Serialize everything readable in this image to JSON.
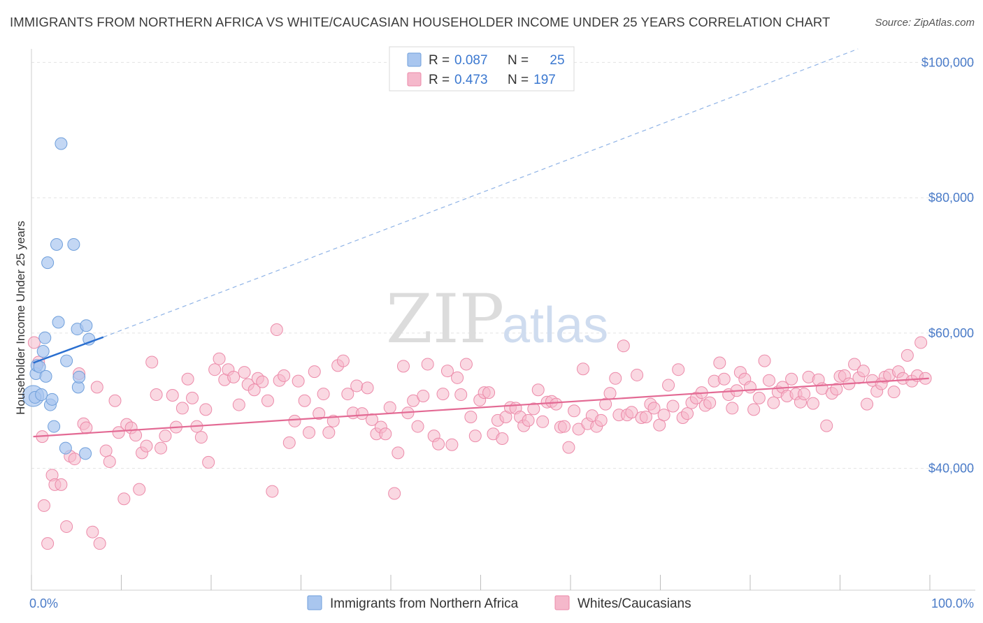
{
  "header": {
    "title": "IMMIGRANTS FROM NORTHERN AFRICA VS WHITE/CAUCASIAN HOUSEHOLDER INCOME UNDER 25 YEARS CORRELATION CHART",
    "source": "Source: ZipAtlas.com"
  },
  "watermark": {
    "zip": "ZIP",
    "atlas": "atlas"
  },
  "colors": {
    "blue_point": "#a9c6ef",
    "blue_stroke": "#6f9fdb",
    "blue_line": "#2a6fd0",
    "pink_point": "#f5b8cb",
    "pink_stroke": "#ec8aa9",
    "pink_line": "#e36a94",
    "axis_label": "#4a7bc8"
  },
  "legend": {
    "rows": [
      {
        "r_label": "R = ",
        "r_value": "0.087",
        "n_label": "N = ",
        "n_value": "25"
      },
      {
        "r_label": "R = ",
        "r_value": "0.473",
        "n_label": "N = ",
        "n_value": "197"
      }
    ]
  },
  "chart_data": {
    "type": "scatter",
    "title": "IMMIGRANTS FROM NORTHERN AFRICA VS WHITE/CAUCASIAN HOUSEHOLDER INCOME UNDER 25 YEARS CORRELATION CHART",
    "xlabel": "",
    "ylabel": "Householder Income Under 25 years",
    "xlim": [
      0,
      100
    ],
    "ylim": [
      22000,
      102000
    ],
    "x_tick_labels": [
      "0.0%",
      "100.0%"
    ],
    "y_ticks": [
      40000,
      60000,
      80000,
      100000
    ],
    "y_tick_labels": [
      "$40,000",
      "$60,000",
      "$80,000",
      "$100,000"
    ],
    "grid": true,
    "legend_position": "top-center",
    "series": [
      {
        "name": "Immigrants from Northern Africa",
        "color": "#a9c6ef",
        "points": [
          [
            0.2,
            50700
          ],
          [
            0.4,
            50500
          ],
          [
            0.5,
            54000
          ],
          [
            0.6,
            55200
          ],
          [
            0.9,
            55000
          ],
          [
            1.1,
            50900
          ],
          [
            1.3,
            57300
          ],
          [
            1.5,
            59300
          ],
          [
            1.6,
            53600
          ],
          [
            1.8,
            70400
          ],
          [
            2.1,
            49400
          ],
          [
            2.3,
            50200
          ],
          [
            2.5,
            46200
          ],
          [
            2.8,
            73100
          ],
          [
            3.0,
            61600
          ],
          [
            3.3,
            88000
          ],
          [
            3.8,
            43000
          ],
          [
            3.9,
            55900
          ],
          [
            4.7,
            73100
          ],
          [
            5.1,
            60600
          ],
          [
            5.2,
            52000
          ],
          [
            5.3,
            53500
          ],
          [
            6.1,
            61100
          ],
          [
            6.0,
            42200
          ],
          [
            6.4,
            59100
          ]
        ],
        "trend": {
          "x": [
            0.2,
            8.0
          ],
          "y": [
            55600,
            59400
          ]
        },
        "trend_extended": {
          "x": [
            8.0,
            92.0
          ],
          "y": [
            59400,
            102000
          ]
        }
      },
      {
        "name": "Whites/Caucasians",
        "color": "#f5b8cb",
        "points": [
          [
            0.3,
            58600
          ],
          [
            1.2,
            44700
          ],
          [
            1.4,
            34500
          ],
          [
            1.8,
            28900
          ],
          [
            2.3,
            39000
          ],
          [
            2.6,
            37600
          ],
          [
            3.3,
            37600
          ],
          [
            3.9,
            31400
          ],
          [
            4.3,
            41800
          ],
          [
            4.8,
            41400
          ],
          [
            5.3,
            54000
          ],
          [
            5.8,
            46600
          ],
          [
            6.1,
            46000
          ],
          [
            6.8,
            30600
          ],
          [
            7.3,
            52000
          ],
          [
            7.6,
            28900
          ],
          [
            8.3,
            42600
          ],
          [
            8.7,
            41000
          ],
          [
            9.3,
            50000
          ],
          [
            9.7,
            45300
          ],
          [
            10.3,
            35500
          ],
          [
            10.6,
            46500
          ],
          [
            11.1,
            46000
          ],
          [
            11.6,
            44900
          ],
          [
            12.0,
            36900
          ],
          [
            12.3,
            42300
          ],
          [
            12.8,
            43300
          ],
          [
            13.4,
            55700
          ],
          [
            13.9,
            50900
          ],
          [
            14.4,
            43000
          ],
          [
            14.9,
            44800
          ],
          [
            15.7,
            50800
          ],
          [
            16.1,
            46100
          ],
          [
            16.8,
            48900
          ],
          [
            17.4,
            53200
          ],
          [
            17.9,
            50400
          ],
          [
            18.4,
            46200
          ],
          [
            18.9,
            44600
          ],
          [
            19.4,
            48700
          ],
          [
            19.7,
            40900
          ],
          [
            20.4,
            54600
          ],
          [
            20.9,
            56200
          ],
          [
            21.5,
            53100
          ],
          [
            21.9,
            54600
          ],
          [
            22.5,
            53500
          ],
          [
            23.1,
            49400
          ],
          [
            23.7,
            54200
          ],
          [
            24.1,
            52400
          ],
          [
            24.8,
            51600
          ],
          [
            25.2,
            53300
          ],
          [
            25.7,
            52800
          ],
          [
            26.3,
            50000
          ],
          [
            26.8,
            36600
          ],
          [
            27.3,
            60500
          ],
          [
            27.6,
            53000
          ],
          [
            28.1,
            53700
          ],
          [
            28.7,
            43800
          ],
          [
            29.3,
            47000
          ],
          [
            29.7,
            52900
          ],
          [
            30.4,
            50000
          ],
          [
            30.9,
            45300
          ],
          [
            31.5,
            54300
          ],
          [
            32.0,
            48100
          ],
          [
            32.5,
            51000
          ],
          [
            33.1,
            45300
          ],
          [
            33.6,
            47000
          ],
          [
            34.1,
            55200
          ],
          [
            34.7,
            55900
          ],
          [
            35.2,
            51000
          ],
          [
            35.8,
            48200
          ],
          [
            36.2,
            52200
          ],
          [
            36.8,
            48100
          ],
          [
            37.4,
            51900
          ],
          [
            37.9,
            47200
          ],
          [
            38.4,
            45100
          ],
          [
            38.9,
            46100
          ],
          [
            39.4,
            45100
          ],
          [
            39.9,
            49000
          ],
          [
            40.4,
            36300
          ],
          [
            40.8,
            42300
          ],
          [
            41.4,
            55100
          ],
          [
            41.9,
            48200
          ],
          [
            42.5,
            50000
          ],
          [
            43.0,
            46200
          ],
          [
            43.6,
            50700
          ],
          [
            44.1,
            55400
          ],
          [
            44.8,
            44800
          ],
          [
            45.3,
            43600
          ],
          [
            45.8,
            51000
          ],
          [
            46.3,
            54400
          ],
          [
            46.8,
            43500
          ],
          [
            47.4,
            53400
          ],
          [
            47.8,
            50900
          ],
          [
            48.4,
            55400
          ],
          [
            48.9,
            47600
          ],
          [
            49.4,
            44800
          ],
          [
            49.9,
            50100
          ],
          [
            50.4,
            51200
          ],
          [
            50.9,
            51200
          ],
          [
            51.4,
            45100
          ],
          [
            51.9,
            47100
          ],
          [
            52.4,
            44400
          ],
          [
            52.8,
            47600
          ],
          [
            53.3,
            49000
          ],
          [
            53.9,
            48900
          ],
          [
            54.4,
            47600
          ],
          [
            54.8,
            46300
          ],
          [
            55.3,
            47100
          ],
          [
            55.9,
            48800
          ],
          [
            56.4,
            51600
          ],
          [
            56.9,
            46900
          ],
          [
            57.4,
            49800
          ],
          [
            57.9,
            49900
          ],
          [
            58.4,
            49500
          ],
          [
            58.9,
            46100
          ],
          [
            59.3,
            46200
          ],
          [
            59.8,
            43100
          ],
          [
            60.4,
            48500
          ],
          [
            60.9,
            45800
          ],
          [
            61.4,
            54700
          ],
          [
            61.9,
            46600
          ],
          [
            62.4,
            47800
          ],
          [
            62.9,
            46200
          ],
          [
            63.4,
            47100
          ],
          [
            63.9,
            49500
          ],
          [
            64.4,
            51100
          ],
          [
            65.0,
            53300
          ],
          [
            65.4,
            47900
          ],
          [
            65.9,
            58100
          ],
          [
            66.3,
            47900
          ],
          [
            66.8,
            48300
          ],
          [
            67.4,
            53800
          ],
          [
            67.9,
            47500
          ],
          [
            68.4,
            47600
          ],
          [
            68.9,
            49500
          ],
          [
            69.3,
            48900
          ],
          [
            69.9,
            46400
          ],
          [
            70.4,
            47900
          ],
          [
            70.9,
            52300
          ],
          [
            71.4,
            49200
          ],
          [
            72.0,
            54600
          ],
          [
            72.5,
            47500
          ],
          [
            73.0,
            48100
          ],
          [
            73.5,
            49700
          ],
          [
            74.0,
            50400
          ],
          [
            74.6,
            51200
          ],
          [
            75.0,
            49300
          ],
          [
            75.5,
            49700
          ],
          [
            76.0,
            52900
          ],
          [
            76.6,
            55600
          ],
          [
            77.1,
            53200
          ],
          [
            77.6,
            50900
          ],
          [
            78.0,
            48900
          ],
          [
            78.5,
            51500
          ],
          [
            78.9,
            54200
          ],
          [
            79.4,
            53200
          ],
          [
            80.0,
            52000
          ],
          [
            80.4,
            48700
          ],
          [
            81.0,
            50400
          ],
          [
            81.6,
            55900
          ],
          [
            82.1,
            53000
          ],
          [
            82.6,
            49700
          ],
          [
            83.1,
            51300
          ],
          [
            83.6,
            52000
          ],
          [
            84.1,
            50700
          ],
          [
            84.6,
            53200
          ],
          [
            85.1,
            51000
          ],
          [
            85.6,
            49800
          ],
          [
            86.0,
            51000
          ],
          [
            86.5,
            53500
          ],
          [
            87.0,
            49600
          ],
          [
            87.6,
            53100
          ],
          [
            88.0,
            51800
          ],
          [
            88.5,
            46300
          ],
          [
            89.1,
            51100
          ],
          [
            89.6,
            51700
          ],
          [
            90.0,
            53600
          ],
          [
            90.5,
            53700
          ],
          [
            91.0,
            52500
          ],
          [
            91.6,
            55400
          ],
          [
            92.1,
            53400
          ],
          [
            92.6,
            54400
          ],
          [
            93.0,
            49500
          ],
          [
            93.6,
            53000
          ],
          [
            94.1,
            51400
          ],
          [
            94.6,
            52500
          ],
          [
            95.0,
            53500
          ],
          [
            95.5,
            53800
          ],
          [
            96.0,
            51300
          ],
          [
            96.5,
            54300
          ],
          [
            97.0,
            53300
          ],
          [
            97.5,
            56700
          ],
          [
            98.0,
            52900
          ],
          [
            98.6,
            53700
          ],
          [
            99.0,
            58600
          ],
          [
            99.5,
            53300
          ],
          [
            0.8,
            55700
          ]
        ],
        "trend": {
          "x": [
            0.2,
            99.9
          ],
          "y": [
            44700,
            53300
          ]
        }
      }
    ]
  },
  "bottom_legend": {
    "items": [
      {
        "label": "Immigrants from Northern Africa"
      },
      {
        "label": "Whites/Caucasians"
      }
    ]
  }
}
